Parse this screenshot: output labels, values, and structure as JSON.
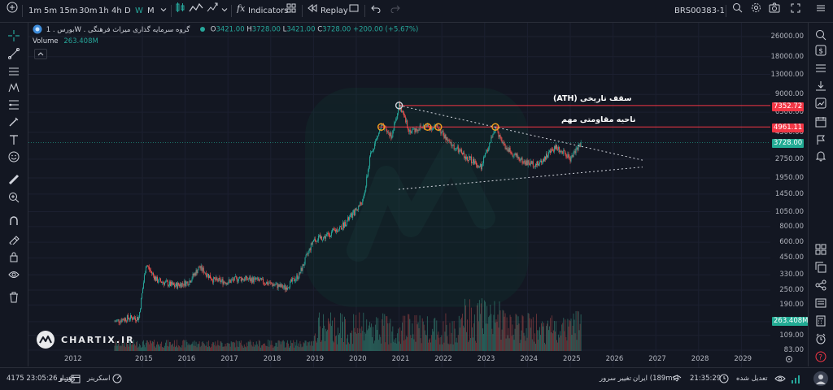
{
  "topbar": {
    "timeframes": [
      "1m",
      "5m",
      "15m",
      "30m",
      "1h",
      "4h",
      "D",
      "W",
      "M"
    ],
    "active_timeframe": "W",
    "indicators_label": "Indicators",
    "replay_label": "Replay",
    "symbol": "BRS00383-1"
  },
  "legend": {
    "title": "بورس . 1W . گروه سرمایه گذاری میراث فرهنگی",
    "o_label": "O",
    "o_value": "3421.00",
    "h_label": "H",
    "h_value": "3728.00",
    "l_label": "L",
    "l_value": "3421.00",
    "c_label": "C",
    "c_value": "3728.00",
    "change": "+200.00 (+5.67%)",
    "volume_label": "Volume",
    "volume_value": "263.408M"
  },
  "annotations": {
    "ath": "سقف تاریخی (ATH)",
    "resistance": "ناحیه مقاومتی مهم"
  },
  "watermark": "CHARTIX.IR",
  "price_labels": {
    "ath": "7352.72",
    "resistance": "4961.11",
    "last": "3728.00",
    "volume": "263.408M"
  },
  "colors": {
    "background": "#131722",
    "up": "#26a69a",
    "down": "#ef5350",
    "line_red": "#f23645",
    "volume": "#4b5563",
    "price_box": "#22ab94"
  },
  "bottombar": {
    "right_label": "تعدیل شده",
    "time": "21:35:29",
    "server": "ایران (189ms)",
    "change_server": "تغییر سرور",
    "screener": "اسکرینر",
    "credit": "اعتبار",
    "credit_value": "4175 روز و 23:05:26"
  },
  "chart_data": {
    "type": "candlestick",
    "scale": "log",
    "x_ticks": [
      "2012",
      "2015",
      "2016",
      "2017",
      "2018",
      "2019",
      "2020",
      "2021",
      "2022",
      "2023",
      "2024",
      "2025",
      "2026",
      "2027",
      "2028",
      "2029"
    ],
    "y_ticks": [
      "26000.00",
      "18000.00",
      "13000.00",
      "9000.00",
      "6500.00",
      "4500.00",
      "2750.00",
      "1950.00",
      "1450.00",
      "1050.00",
      "800.00",
      "600.00",
      "450.00",
      "330.00",
      "250.00",
      "190.00",
      "140.00",
      "109.00",
      "83.00"
    ],
    "ylim": [
      83,
      30000
    ],
    "approx_weekly_closes": [
      {
        "t": "2014-05",
        "v": 140
      },
      {
        "t": "2014-09",
        "v": 150
      },
      {
        "t": "2014-12",
        "v": 150
      },
      {
        "t": "2015-02",
        "v": 400
      },
      {
        "t": "2015-05",
        "v": 300
      },
      {
        "t": "2015-10",
        "v": 270
      },
      {
        "t": "2016-02",
        "v": 290
      },
      {
        "t": "2016-05",
        "v": 380
      },
      {
        "t": "2016-09",
        "v": 300
      },
      {
        "t": "2017-01",
        "v": 290
      },
      {
        "t": "2017-04",
        "v": 310
      },
      {
        "t": "2017-09",
        "v": 300
      },
      {
        "t": "2018-01",
        "v": 280
      },
      {
        "t": "2018-05",
        "v": 260
      },
      {
        "t": "2018-09",
        "v": 330
      },
      {
        "t": "2019-01",
        "v": 630
      },
      {
        "t": "2019-04",
        "v": 660
      },
      {
        "t": "2019-09",
        "v": 800
      },
      {
        "t": "2019-12",
        "v": 1000
      },
      {
        "t": "2020-03",
        "v": 1300
      },
      {
        "t": "2020-05",
        "v": 3000
      },
      {
        "t": "2020-08",
        "v": 5000
      },
      {
        "t": "2020-11",
        "v": 4200
      },
      {
        "t": "2021-01",
        "v": 7350
      },
      {
        "t": "2021-04",
        "v": 4600
      },
      {
        "t": "2021-08",
        "v": 5000
      },
      {
        "t": "2021-12",
        "v": 4900
      },
      {
        "t": "2022-03",
        "v": 3700
      },
      {
        "t": "2022-07",
        "v": 3000
      },
      {
        "t": "2022-12",
        "v": 2400
      },
      {
        "t": "2023-04",
        "v": 4900
      },
      {
        "t": "2023-07",
        "v": 3400
      },
      {
        "t": "2023-12",
        "v": 2600
      },
      {
        "t": "2024-04",
        "v": 2500
      },
      {
        "t": "2024-09",
        "v": 3500
      },
      {
        "t": "2025-01",
        "v": 2800
      },
      {
        "t": "2025-04",
        "v": 3728
      }
    ],
    "ath_level": 7352.72,
    "resistance_level": 4961.11,
    "last_price": 3728.0
  }
}
